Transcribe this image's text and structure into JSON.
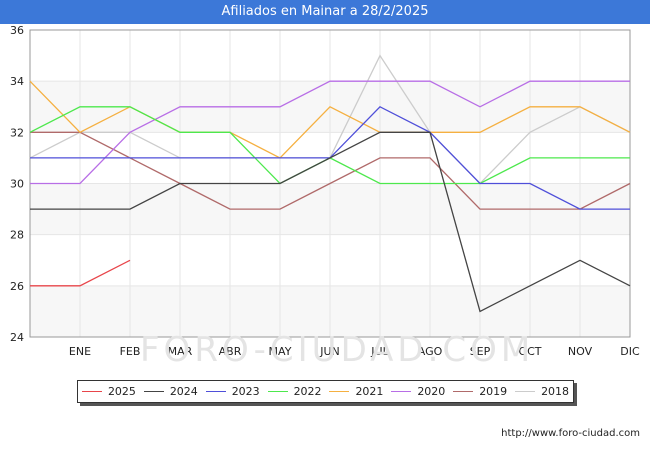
{
  "title": "Afiliados en Mainar a 28/2/2025",
  "source": "http://www.foro-ciudad.com",
  "watermark": "FORO-CIUDAD.COM",
  "chart_data": {
    "type": "line",
    "title": "Afiliados en Mainar a 28/2/2025",
    "xlabel": "",
    "ylabel": "",
    "ylim": [
      24,
      36
    ],
    "yticks": [
      24,
      26,
      28,
      30,
      32,
      34,
      36
    ],
    "categories": [
      "",
      "ENE",
      "FEB",
      "MAR",
      "ABR",
      "MAY",
      "JUN",
      "JUL",
      "AGO",
      "SEP",
      "OCT",
      "NOV",
      "DIC"
    ],
    "grid": true,
    "legend_position": "bottom",
    "series": [
      {
        "name": "2025",
        "color": "#e8454a",
        "values": [
          26,
          26,
          27,
          null,
          null,
          null,
          null,
          null,
          null,
          null,
          null,
          null,
          null
        ]
      },
      {
        "name": "2024",
        "color": "#444444",
        "values": [
          29,
          29,
          29,
          30,
          30,
          30,
          31,
          32,
          32,
          25,
          26,
          27,
          26
        ]
      },
      {
        "name": "2023",
        "color": "#4f4fd9",
        "values": [
          31,
          31,
          31,
          31,
          31,
          31,
          31,
          33,
          32,
          30,
          30,
          29,
          29
        ]
      },
      {
        "name": "2022",
        "color": "#4de84d",
        "values": [
          32,
          33,
          33,
          32,
          32,
          30,
          31,
          30,
          30,
          30,
          31,
          31,
          31
        ]
      },
      {
        "name": "2021",
        "color": "#f5b041",
        "values": [
          34,
          32,
          33,
          32,
          32,
          31,
          33,
          32,
          32,
          32,
          33,
          33,
          32
        ]
      },
      {
        "name": "2020",
        "color": "#b86ee6",
        "values": [
          30,
          30,
          32,
          33,
          33,
          33,
          34,
          34,
          34,
          33,
          34,
          34,
          34
        ]
      },
      {
        "name": "2019",
        "color": "#b06a6a",
        "values": [
          32,
          32,
          31,
          30,
          29,
          29,
          30,
          31,
          31,
          29,
          29,
          29,
          30
        ]
      },
      {
        "name": "2018",
        "color": "#cccccc",
        "values": [
          31,
          32,
          32,
          31,
          31,
          31,
          31,
          35,
          32,
          30,
          32,
          33,
          32
        ]
      }
    ]
  }
}
